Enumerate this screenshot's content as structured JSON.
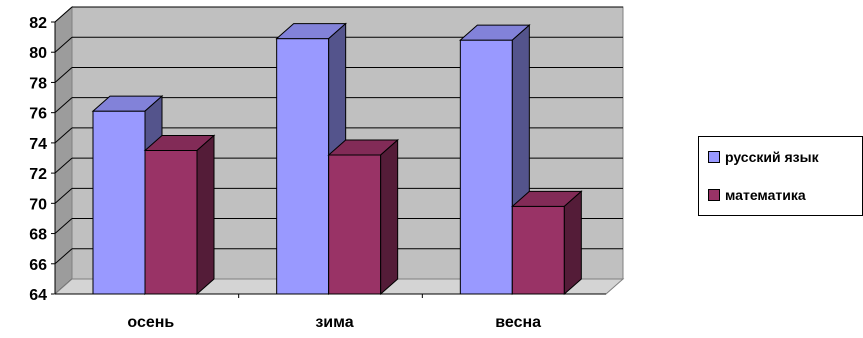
{
  "chart_data": {
    "type": "bar",
    "categories": [
      "осень",
      "зима",
      "весна"
    ],
    "series": [
      {
        "name": "русский язык",
        "values": [
          76.1,
          80.9,
          80.8
        ],
        "color": "#9999FF"
      },
      {
        "name": "математика",
        "values": [
          73.5,
          73.2,
          69.8
        ],
        "color": "#993366"
      }
    ],
    "ylim": [
      64,
      82
    ],
    "yticks": [
      64,
      66,
      68,
      70,
      72,
      74,
      76,
      78,
      80,
      82
    ],
    "grid": true,
    "style": "3d-clustered-column",
    "legend_position": "right",
    "title": "",
    "xlabel": "",
    "ylabel": ""
  }
}
